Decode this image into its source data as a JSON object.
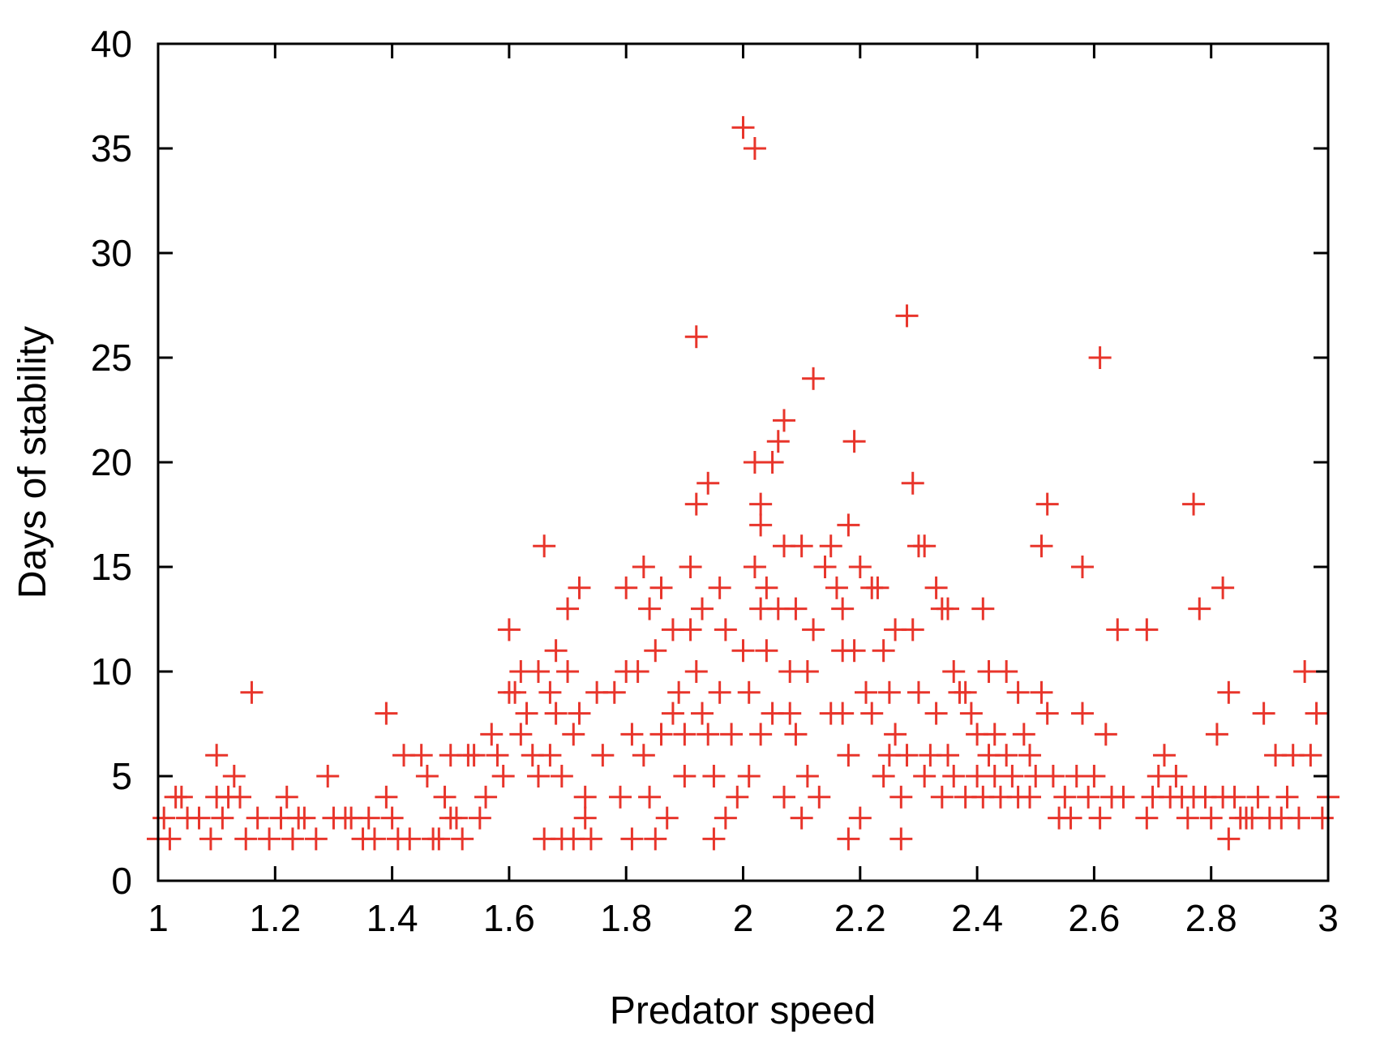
{
  "chart_data": {
    "type": "scatter",
    "title": "",
    "xlabel": "Predator speed",
    "ylabel": "Days of stability",
    "xlim": [
      1,
      3
    ],
    "ylim": [
      0,
      40
    ],
    "xticks": [
      1,
      1.2,
      1.4,
      1.6,
      1.8,
      2,
      2.2,
      2.4,
      2.6,
      2.8,
      3
    ],
    "xtick_labels": [
      "1",
      "1.2",
      "1.4",
      "1.6",
      "1.8",
      "2",
      "2.2",
      "2.4",
      "2.6",
      "2.8",
      "3"
    ],
    "yticks": [
      0,
      5,
      10,
      15,
      20,
      25,
      30,
      35,
      40
    ],
    "ytick_labels": [
      "0",
      "5",
      "10",
      "15",
      "20",
      "25",
      "30",
      "35",
      "40"
    ],
    "grid": false,
    "legend": "none",
    "marker": "plus",
    "colors": {
      "marker": "#e8352b",
      "axes": "#000000",
      "background": "#ffffff"
    },
    "points": [
      [
        1.0,
        2
      ],
      [
        1.01,
        3
      ],
      [
        1.02,
        2
      ],
      [
        1.03,
        4
      ],
      [
        1.04,
        4
      ],
      [
        1.05,
        3
      ],
      [
        1.07,
        3
      ],
      [
        1.09,
        2
      ],
      [
        1.1,
        6
      ],
      [
        1.1,
        4
      ],
      [
        1.11,
        3
      ],
      [
        1.12,
        4
      ],
      [
        1.13,
        5
      ],
      [
        1.14,
        4
      ],
      [
        1.15,
        2
      ],
      [
        1.16,
        9
      ],
      [
        1.17,
        3
      ],
      [
        1.19,
        2
      ],
      [
        1.21,
        3
      ],
      [
        1.22,
        4
      ],
      [
        1.23,
        2
      ],
      [
        1.24,
        3
      ],
      [
        1.25,
        3
      ],
      [
        1.27,
        2
      ],
      [
        1.29,
        5
      ],
      [
        1.3,
        3
      ],
      [
        1.32,
        3
      ],
      [
        1.33,
        3
      ],
      [
        1.35,
        2
      ],
      [
        1.36,
        3
      ],
      [
        1.37,
        2
      ],
      [
        1.39,
        8
      ],
      [
        1.39,
        4
      ],
      [
        1.4,
        3
      ],
      [
        1.41,
        2
      ],
      [
        1.42,
        6
      ],
      [
        1.43,
        2
      ],
      [
        1.45,
        6
      ],
      [
        1.46,
        5
      ],
      [
        1.47,
        2
      ],
      [
        1.48,
        2
      ],
      [
        1.49,
        4
      ],
      [
        1.5,
        6
      ],
      [
        1.5,
        3
      ],
      [
        1.51,
        3
      ],
      [
        1.52,
        2
      ],
      [
        1.53,
        6
      ],
      [
        1.54,
        6
      ],
      [
        1.55,
        3
      ],
      [
        1.56,
        4
      ],
      [
        1.57,
        7
      ],
      [
        1.58,
        6
      ],
      [
        1.59,
        5
      ],
      [
        1.6,
        9
      ],
      [
        1.6,
        12
      ],
      [
        1.61,
        9
      ],
      [
        1.62,
        7
      ],
      [
        1.62,
        10
      ],
      [
        1.63,
        8
      ],
      [
        1.64,
        6
      ],
      [
        1.65,
        10
      ],
      [
        1.65,
        5
      ],
      [
        1.66,
        2
      ],
      [
        1.66,
        16
      ],
      [
        1.67,
        9
      ],
      [
        1.67,
        6
      ],
      [
        1.68,
        11
      ],
      [
        1.68,
        8
      ],
      [
        1.69,
        2
      ],
      [
        1.69,
        5
      ],
      [
        1.7,
        13
      ],
      [
        1.7,
        10
      ],
      [
        1.71,
        7
      ],
      [
        1.71,
        2
      ],
      [
        1.72,
        14
      ],
      [
        1.72,
        8
      ],
      [
        1.73,
        4
      ],
      [
        1.73,
        3
      ],
      [
        1.74,
        2
      ],
      [
        1.75,
        9
      ],
      [
        1.76,
        6
      ],
      [
        1.78,
        9
      ],
      [
        1.79,
        4
      ],
      [
        1.8,
        14
      ],
      [
        1.8,
        10
      ],
      [
        1.81,
        7
      ],
      [
        1.81,
        2
      ],
      [
        1.82,
        10
      ],
      [
        1.83,
        15
      ],
      [
        1.83,
        6
      ],
      [
        1.84,
        13
      ],
      [
        1.84,
        4
      ],
      [
        1.85,
        11
      ],
      [
        1.85,
        2
      ],
      [
        1.86,
        14
      ],
      [
        1.86,
        7
      ],
      [
        1.87,
        3
      ],
      [
        1.88,
        12
      ],
      [
        1.88,
        8
      ],
      [
        1.89,
        9
      ],
      [
        1.9,
        5
      ],
      [
        1.9,
        7
      ],
      [
        1.91,
        15
      ],
      [
        1.91,
        12
      ],
      [
        1.92,
        26
      ],
      [
        1.92,
        18
      ],
      [
        1.92,
        10
      ],
      [
        1.93,
        13
      ],
      [
        1.93,
        8
      ],
      [
        1.94,
        19
      ],
      [
        1.94,
        7
      ],
      [
        1.95,
        2
      ],
      [
        1.95,
        5
      ],
      [
        1.96,
        9
      ],
      [
        1.96,
        14
      ],
      [
        1.97,
        12
      ],
      [
        1.97,
        3
      ],
      [
        1.98,
        7
      ],
      [
        1.99,
        4
      ],
      [
        2.0,
        11
      ],
      [
        2.0,
        36
      ],
      [
        2.01,
        9
      ],
      [
        2.01,
        5
      ],
      [
        2.02,
        35
      ],
      [
        2.02,
        15
      ],
      [
        2.02,
        20
      ],
      [
        2.03,
        18
      ],
      [
        2.03,
        17
      ],
      [
        2.03,
        13
      ],
      [
        2.03,
        7
      ],
      [
        2.04,
        14
      ],
      [
        2.04,
        11
      ],
      [
        2.05,
        20
      ],
      [
        2.05,
        8
      ],
      [
        2.06,
        21
      ],
      [
        2.06,
        13
      ],
      [
        2.07,
        22
      ],
      [
        2.07,
        16
      ],
      [
        2.07,
        4
      ],
      [
        2.08,
        10
      ],
      [
        2.08,
        8
      ],
      [
        2.09,
        13
      ],
      [
        2.09,
        7
      ],
      [
        2.1,
        3
      ],
      [
        2.1,
        16
      ],
      [
        2.11,
        10
      ],
      [
        2.11,
        5
      ],
      [
        2.12,
        24
      ],
      [
        2.12,
        12
      ],
      [
        2.13,
        4
      ],
      [
        2.14,
        15
      ],
      [
        2.15,
        8
      ],
      [
        2.15,
        16
      ],
      [
        2.16,
        14
      ],
      [
        2.17,
        13
      ],
      [
        2.17,
        11
      ],
      [
        2.17,
        8
      ],
      [
        2.18,
        17
      ],
      [
        2.18,
        6
      ],
      [
        2.18,
        2
      ],
      [
        2.19,
        21
      ],
      [
        2.19,
        11
      ],
      [
        2.2,
        15
      ],
      [
        2.2,
        3
      ],
      [
        2.21,
        9
      ],
      [
        2.22,
        14
      ],
      [
        2.22,
        8
      ],
      [
        2.23,
        14
      ],
      [
        2.24,
        11
      ],
      [
        2.24,
        5
      ],
      [
        2.25,
        9
      ],
      [
        2.25,
        6
      ],
      [
        2.26,
        12
      ],
      [
        2.26,
        7
      ],
      [
        2.27,
        2
      ],
      [
        2.27,
        4
      ],
      [
        2.28,
        27
      ],
      [
        2.28,
        6
      ],
      [
        2.29,
        19
      ],
      [
        2.29,
        12
      ],
      [
        2.3,
        9
      ],
      [
        2.3,
        16
      ],
      [
        2.31,
        16
      ],
      [
        2.31,
        5
      ],
      [
        2.32,
        6
      ],
      [
        2.33,
        8
      ],
      [
        2.33,
        14
      ],
      [
        2.34,
        13
      ],
      [
        2.34,
        4
      ],
      [
        2.35,
        13
      ],
      [
        2.35,
        6
      ],
      [
        2.36,
        5
      ],
      [
        2.36,
        10
      ],
      [
        2.37,
        9
      ],
      [
        2.38,
        9
      ],
      [
        2.38,
        4
      ],
      [
        2.39,
        8
      ],
      [
        2.4,
        7
      ],
      [
        2.4,
        5
      ],
      [
        2.41,
        13
      ],
      [
        2.41,
        4
      ],
      [
        2.42,
        6
      ],
      [
        2.42,
        10
      ],
      [
        2.43,
        7
      ],
      [
        2.43,
        5
      ],
      [
        2.44,
        4
      ],
      [
        2.45,
        10
      ],
      [
        2.45,
        6
      ],
      [
        2.46,
        5
      ],
      [
        2.47,
        9
      ],
      [
        2.47,
        4
      ],
      [
        2.48,
        7
      ],
      [
        2.49,
        6
      ],
      [
        2.49,
        4
      ],
      [
        2.5,
        5
      ],
      [
        2.51,
        16
      ],
      [
        2.51,
        9
      ],
      [
        2.52,
        18
      ],
      [
        2.52,
        8
      ],
      [
        2.53,
        5
      ],
      [
        2.54,
        3
      ],
      [
        2.55,
        4
      ],
      [
        2.56,
        3
      ],
      [
        2.57,
        5
      ],
      [
        2.58,
        15
      ],
      [
        2.58,
        8
      ],
      [
        2.59,
        4
      ],
      [
        2.6,
        5
      ],
      [
        2.61,
        25
      ],
      [
        2.61,
        3
      ],
      [
        2.62,
        7
      ],
      [
        2.63,
        4
      ],
      [
        2.64,
        12
      ],
      [
        2.65,
        4
      ],
      [
        2.69,
        12
      ],
      [
        2.69,
        3
      ],
      [
        2.7,
        4
      ],
      [
        2.71,
        5
      ],
      [
        2.72,
        6
      ],
      [
        2.73,
        4
      ],
      [
        2.74,
        5
      ],
      [
        2.75,
        4
      ],
      [
        2.76,
        3
      ],
      [
        2.77,
        18
      ],
      [
        2.77,
        4
      ],
      [
        2.78,
        13
      ],
      [
        2.79,
        4
      ],
      [
        2.8,
        3
      ],
      [
        2.81,
        7
      ],
      [
        2.82,
        14
      ],
      [
        2.82,
        4
      ],
      [
        2.83,
        9
      ],
      [
        2.83,
        2
      ],
      [
        2.84,
        4
      ],
      [
        2.85,
        3
      ],
      [
        2.86,
        3
      ],
      [
        2.87,
        3
      ],
      [
        2.88,
        4
      ],
      [
        2.89,
        8
      ],
      [
        2.9,
        3
      ],
      [
        2.91,
        6
      ],
      [
        2.92,
        3
      ],
      [
        2.93,
        4
      ],
      [
        2.94,
        6
      ],
      [
        2.95,
        3
      ],
      [
        2.96,
        10
      ],
      [
        2.97,
        6
      ],
      [
        2.98,
        8
      ],
      [
        2.99,
        3
      ],
      [
        3.0,
        4
      ]
    ]
  }
}
